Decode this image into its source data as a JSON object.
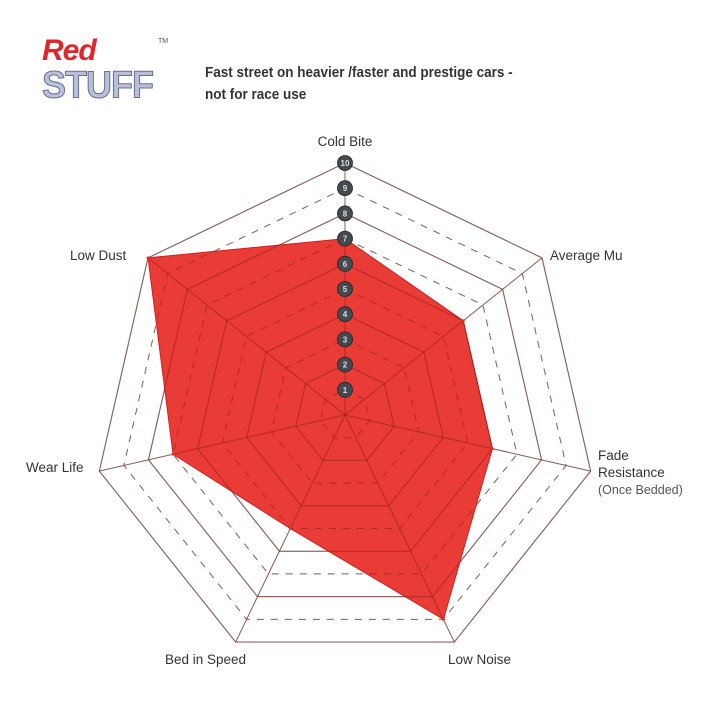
{
  "logo": {
    "text_line1": "Red",
    "text_line2": "STUFF",
    "trademark": "TM"
  },
  "chart_data": {
    "type": "radar",
    "title": "Fast street on heavier /faster and prestige cars - not for race use",
    "title_lines": [
      "Fast street on heavier /faster and prestige cars -",
      "not for race use"
    ],
    "axes": [
      "Cold Bite",
      "Average Mu",
      "Fade Resistance",
      "Low Noise",
      "Bed in Speed",
      "Wear Life",
      "Low Dust"
    ],
    "axis_sublabels": {
      "Fade Resistance": "(Once Bedded)"
    },
    "values": [
      7,
      6,
      6,
      9,
      5,
      7,
      10
    ],
    "scale": {
      "min": 0,
      "max": 10,
      "ticks": [
        "1",
        "2",
        "3",
        "4",
        "5",
        "6",
        "7",
        "8",
        "9",
        "10"
      ]
    },
    "colors": {
      "fill": "#e8312b",
      "grid": "#999999",
      "tick_badge": "#444a50"
    }
  }
}
